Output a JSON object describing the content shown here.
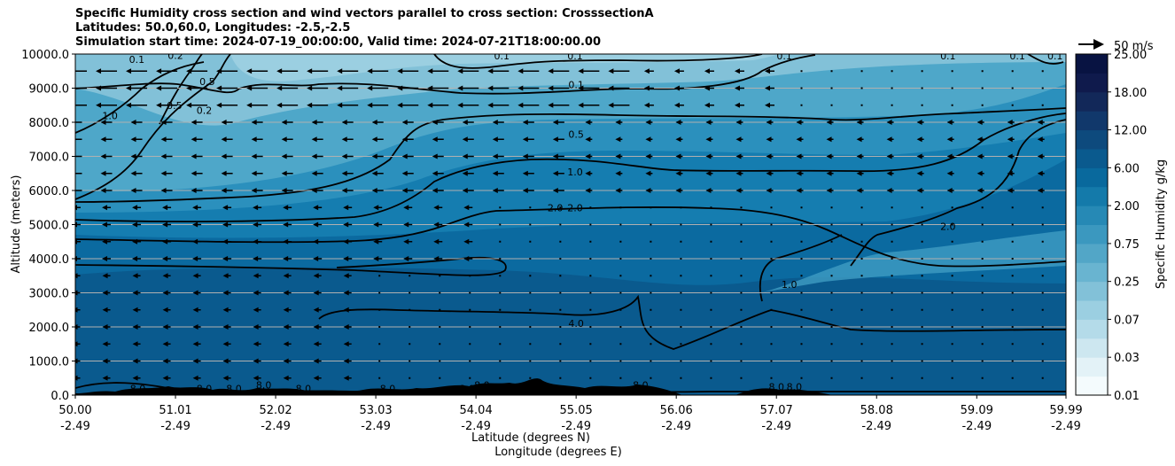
{
  "chart_data": {
    "type": "contourf",
    "title": [
      "Specific Humidity cross section and wind vectors parallel to cross section: CrosssectionA",
      "Latitudes: 50.0,60.0, Longitudes: -2.5,-2.5",
      "Simulation start time: 2024-07-19_00:00:00, Valid time: 2024-07-21T18:00:00.00"
    ],
    "ylabel": "Altitude (meters)",
    "xlabel_lat": "Latitude (degrees N)",
    "xlabel_lon": "Longitude (degrees E)",
    "ylim": [
      0,
      10000
    ],
    "xlim": [
      50.0,
      59.99
    ],
    "yticks": [
      "0.0",
      "1000.0",
      "2000.0",
      "3000.0",
      "4000.0",
      "5000.0",
      "6000.0",
      "7000.0",
      "8000.0",
      "9000.0",
      "10000.0"
    ],
    "xticks": [
      {
        "lat": "50.00",
        "lon": "-2.49",
        "v": 50.0
      },
      {
        "lat": "51.01",
        "lon": "-2.49",
        "v": 51.01
      },
      {
        "lat": "52.02",
        "lon": "-2.49",
        "v": 52.02
      },
      {
        "lat": "53.03",
        "lon": "-2.49",
        "v": 53.03
      },
      {
        "lat": "54.04",
        "lon": "-2.49",
        "v": 54.04
      },
      {
        "lat": "55.05",
        "lon": "-2.49",
        "v": 55.05
      },
      {
        "lat": "56.06",
        "lon": "-2.49",
        "v": 56.06
      },
      {
        "lat": "57.07",
        "lon": "-2.49",
        "v": 57.07
      },
      {
        "lat": "58.08",
        "lon": "-2.49",
        "v": 58.08
      },
      {
        "lat": "59.09",
        "lon": "-2.49",
        "v": 59.09
      },
      {
        "lat": "59.99",
        "lon": "-2.49",
        "v": 59.99
      }
    ],
    "colorbar": {
      "label": "Specific Humidity g/kg",
      "ticks": [
        "0.01",
        "0.03",
        "0.07",
        "0.25",
        "0.75",
        "2.00",
        "6.00",
        "12.00",
        "18.00",
        "25.00"
      ],
      "colors": [
        "#f4fbfd",
        "#e3f2f7",
        "#cde7f0",
        "#b4dbe9",
        "#9bcfe1",
        "#82c1d8",
        "#69b4d0",
        "#52a6c7",
        "#3b98bf",
        "#2689b5",
        "#147aaa",
        "#09699d",
        "#0a5a8e",
        "#0d4a7d",
        "#11386b",
        "#122859",
        "#0f1a4c",
        "#081342"
      ]
    },
    "wind_key": "50 m/s",
    "contour_labels": [
      {
        "text": "0.1",
        "lat": 50.62,
        "alt": 9850
      },
      {
        "text": "0.2",
        "lat": 51.01,
        "alt": 9960
      },
      {
        "text": "0.5",
        "lat": 51.33,
        "alt": 9200
      },
      {
        "text": "0.5",
        "lat": 51.0,
        "alt": 8500
      },
      {
        "text": "0.2",
        "lat": 51.3,
        "alt": 8350
      },
      {
        "text": "1.0",
        "lat": 50.35,
        "alt": 8200
      },
      {
        "text": "0.1",
        "lat": 54.3,
        "alt": 9950
      },
      {
        "text": "0.1",
        "lat": 55.04,
        "alt": 9950
      },
      {
        "text": "0.1",
        "lat": 55.05,
        "alt": 9100
      },
      {
        "text": "0.5",
        "lat": 55.05,
        "alt": 7650
      },
      {
        "text": "1.0",
        "lat": 55.04,
        "alt": 6550
      },
      {
        "text": "2.0",
        "lat": 54.84,
        "alt": 5500
      },
      {
        "text": "2.0",
        "lat": 55.04,
        "alt": 5500
      },
      {
        "text": "4.0",
        "lat": 55.05,
        "alt": 2100
      },
      {
        "text": "2.0",
        "lat": 58.8,
        "alt": 4950
      },
      {
        "text": "1.0",
        "lat": 57.2,
        "alt": 3250
      },
      {
        "text": "0.1",
        "lat": 57.15,
        "alt": 9950
      },
      {
        "text": "0.1",
        "lat": 58.8,
        "alt": 9950
      },
      {
        "text": "0.1",
        "lat": 59.5,
        "alt": 9950
      },
      {
        "text": "0.1",
        "lat": 59.88,
        "alt": 9950
      },
      {
        "text": "8.0",
        "lat": 50.63,
        "alt": 200
      },
      {
        "text": "8.0",
        "lat": 51.3,
        "alt": 200
      },
      {
        "text": "8.0",
        "lat": 51.6,
        "alt": 200
      },
      {
        "text": "8.0",
        "lat": 51.9,
        "alt": 300
      },
      {
        "text": "8.0",
        "lat": 52.3,
        "alt": 200
      },
      {
        "text": "8.0",
        "lat": 53.15,
        "alt": 200
      },
      {
        "text": "8.0",
        "lat": 53.95,
        "alt": 200
      },
      {
        "text": "8.0",
        "lat": 54.1,
        "alt": 300
      },
      {
        "text": "8.0",
        "lat": 55.7,
        "alt": 300
      },
      {
        "text": "8.0",
        "lat": 57.07,
        "alt": 250
      },
      {
        "text": "8.0",
        "lat": 57.25,
        "alt": 250
      }
    ]
  }
}
